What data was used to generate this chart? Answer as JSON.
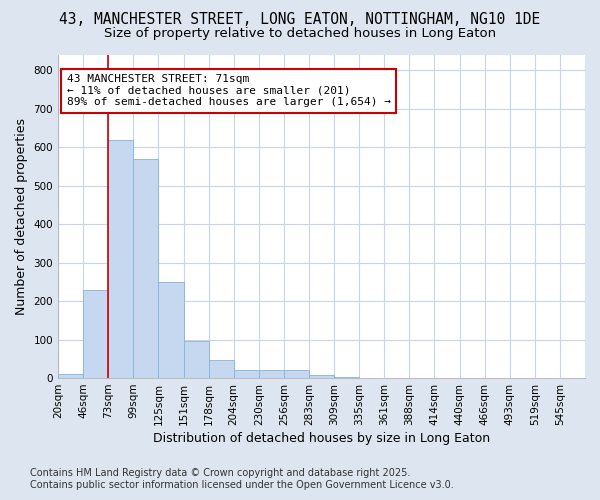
{
  "title_line1": "43, MANCHESTER STREET, LONG EATON, NOTTINGHAM, NG10 1DE",
  "title_line2": "Size of property relative to detached houses in Long Eaton",
  "xlabel": "Distribution of detached houses by size in Long Eaton",
  "ylabel": "Number of detached properties",
  "bar_values": [
    10,
    230,
    620,
    570,
    250,
    97,
    48,
    22,
    22,
    22,
    8,
    3,
    0,
    0,
    0,
    0,
    0,
    0,
    0,
    0
  ],
  "categories": [
    "20sqm",
    "46sqm",
    "73sqm",
    "99sqm",
    "125sqm",
    "151sqm",
    "178sqm",
    "204sqm",
    "230sqm",
    "256sqm",
    "283sqm",
    "309sqm",
    "335sqm",
    "361sqm",
    "388sqm",
    "414sqm",
    "440sqm",
    "466sqm",
    "493sqm",
    "519sqm",
    "545sqm"
  ],
  "bar_color": "#c5d8f0",
  "bar_edge_color": "#85b4d9",
  "vline_x": 2,
  "vline_color": "#cc0000",
  "annotation_text": "43 MANCHESTER STREET: 71sqm\n← 11% of detached houses are smaller (201)\n89% of semi-detached houses are larger (1,654) →",
  "annotation_box_color": "#ffffff",
  "annotation_box_edge": "#cc0000",
  "ylim": [
    0,
    840
  ],
  "yticks": [
    0,
    100,
    200,
    300,
    400,
    500,
    600,
    700,
    800
  ],
  "fig_bg_color": "#dde6f0",
  "plot_bg_color": "#ffffff",
  "grid_color": "#c8d4e8",
  "footer_line1": "Contains HM Land Registry data © Crown copyright and database right 2025.",
  "footer_line2": "Contains public sector information licensed under the Open Government Licence v3.0.",
  "title_fontsize": 10.5,
  "subtitle_fontsize": 9.5,
  "axis_label_fontsize": 9,
  "tick_fontsize": 7.5,
  "annotation_fontsize": 8,
  "footer_fontsize": 7
}
